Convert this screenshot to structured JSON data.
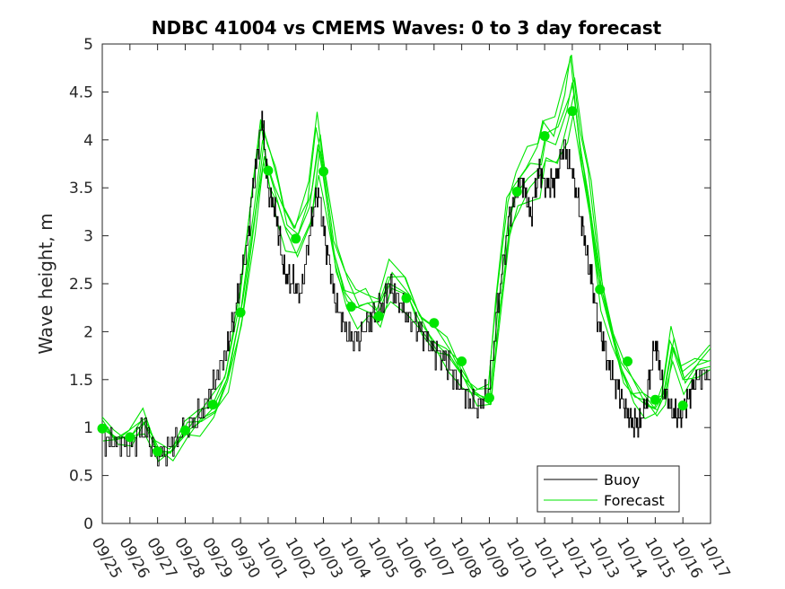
{
  "chart_data": {
    "type": "line",
    "title": "NDBC 41004 vs CMEMS Waves: 0 to 3 day forecast",
    "xlabel": "",
    "ylabel": "Wave height, m",
    "ylim": [
      0,
      5
    ],
    "xlim": [
      0,
      22
    ],
    "y_ticks": [
      "0",
      "0.5",
      "1",
      "1.5",
      "2",
      "2.5",
      "3",
      "3.5",
      "4",
      "4.5",
      "5"
    ],
    "x_ticks": [
      "09/25",
      "09/26",
      "09/27",
      "09/28",
      "09/29",
      "09/30",
      "10/01",
      "10/02",
      "10/03",
      "10/04",
      "10/05",
      "10/06",
      "10/07",
      "10/08",
      "10/09",
      "10/10",
      "10/11",
      "10/12",
      "10/13",
      "10/14",
      "10/15",
      "10/16",
      "10/17"
    ],
    "legend": {
      "position": "bottom-right",
      "entries": [
        "Buoy",
        "Forecast"
      ]
    },
    "colors": {
      "buoy": "#000000",
      "forecast": "#00e600",
      "axis": "#262626"
    },
    "series": [
      {
        "name": "Buoy",
        "style": "stairs",
        "x": [
          0,
          0.5,
          1,
          1.5,
          2,
          2.5,
          3,
          3.5,
          4,
          4.5,
          4.8,
          5.2,
          5.5,
          5.8,
          6.0,
          6.3,
          6.6,
          6.9,
          7.2,
          7.5,
          7.8,
          8.1,
          8.4,
          8.8,
          9.2,
          9.6,
          10.0,
          10.4,
          10.8,
          11.2,
          11.6,
          12.0,
          12.4,
          12.8,
          13.2,
          13.6,
          14.0,
          14.4,
          14.8,
          15.2,
          15.5,
          15.8,
          16.1,
          16.4,
          16.7,
          17.0,
          17.3,
          17.6,
          17.9,
          18.2,
          18.5,
          18.8,
          19.1,
          19.4,
          19.7,
          20.0,
          20.3,
          20.6,
          20.9,
          21.2,
          21.5,
          22.0
        ],
        "y": [
          0.9,
          0.85,
          0.8,
          1.0,
          0.7,
          0.8,
          1.0,
          1.1,
          1.4,
          1.8,
          2.2,
          2.8,
          3.6,
          4.2,
          3.5,
          3.2,
          2.6,
          2.5,
          2.4,
          3.0,
          3.5,
          2.9,
          2.4,
          2.0,
          1.9,
          2.1,
          2.2,
          2.5,
          2.3,
          2.1,
          2.0,
          1.8,
          1.7,
          1.5,
          1.3,
          1.2,
          1.4,
          2.5,
          3.3,
          3.6,
          3.2,
          3.7,
          3.5,
          3.6,
          3.9,
          3.7,
          3.2,
          2.7,
          2.2,
          1.8,
          1.5,
          1.3,
          1.1,
          1.0,
          1.3,
          1.9,
          1.4,
          1.2,
          1.1,
          1.3,
          1.5,
          1.6
        ]
      },
      {
        "name": "Forecast",
        "x": [
          0,
          0.5,
          1,
          1.5,
          2,
          2.5,
          3,
          3.5,
          4,
          4.5,
          5,
          5.5,
          5.8,
          6,
          6.3,
          6.6,
          7,
          7.5,
          7.8,
          8,
          8.4,
          8.8,
          9.2,
          9.6,
          10,
          10.4,
          11,
          11.5,
          12,
          12.5,
          13,
          13.5,
          14,
          14.3,
          14.7,
          15,
          15.4,
          15.8,
          16,
          16.4,
          16.8,
          17,
          17.3,
          17.6,
          18,
          18.4,
          18.8,
          19.2,
          19.6,
          20,
          20.3,
          20.6,
          21,
          21.5,
          22
        ],
        "y": [
          1.0,
          0.9,
          0.9,
          1.05,
          0.75,
          0.75,
          0.95,
          1.05,
          1.2,
          1.5,
          2.2,
          3.3,
          4.0,
          3.7,
          3.4,
          3.1,
          2.95,
          3.3,
          3.95,
          3.6,
          2.8,
          2.4,
          2.25,
          2.3,
          2.2,
          2.5,
          2.4,
          2.1,
          1.9,
          1.75,
          1.55,
          1.35,
          1.3,
          2.2,
          3.2,
          3.45,
          3.6,
          3.7,
          4.0,
          3.95,
          4.3,
          4.6,
          3.9,
          3.4,
          2.45,
          2.0,
          1.6,
          1.35,
          1.25,
          1.2,
          1.35,
          1.85,
          1.5,
          1.65,
          1.7
        ],
        "markers_x": [
          0,
          1,
          2,
          3,
          4,
          5,
          6,
          7,
          8,
          9,
          10,
          11,
          12,
          13,
          14,
          15,
          16,
          17,
          18,
          19,
          20,
          21
        ],
        "markers_y": [
          0.99,
          0.9,
          0.75,
          0.97,
          1.24,
          2.2,
          3.68,
          2.97,
          3.67,
          2.26,
          2.16,
          2.35,
          2.09,
          1.69,
          1.31,
          3.46,
          4.04,
          4.3,
          2.44,
          1.69,
          1.29,
          1.23
        ]
      }
    ]
  }
}
